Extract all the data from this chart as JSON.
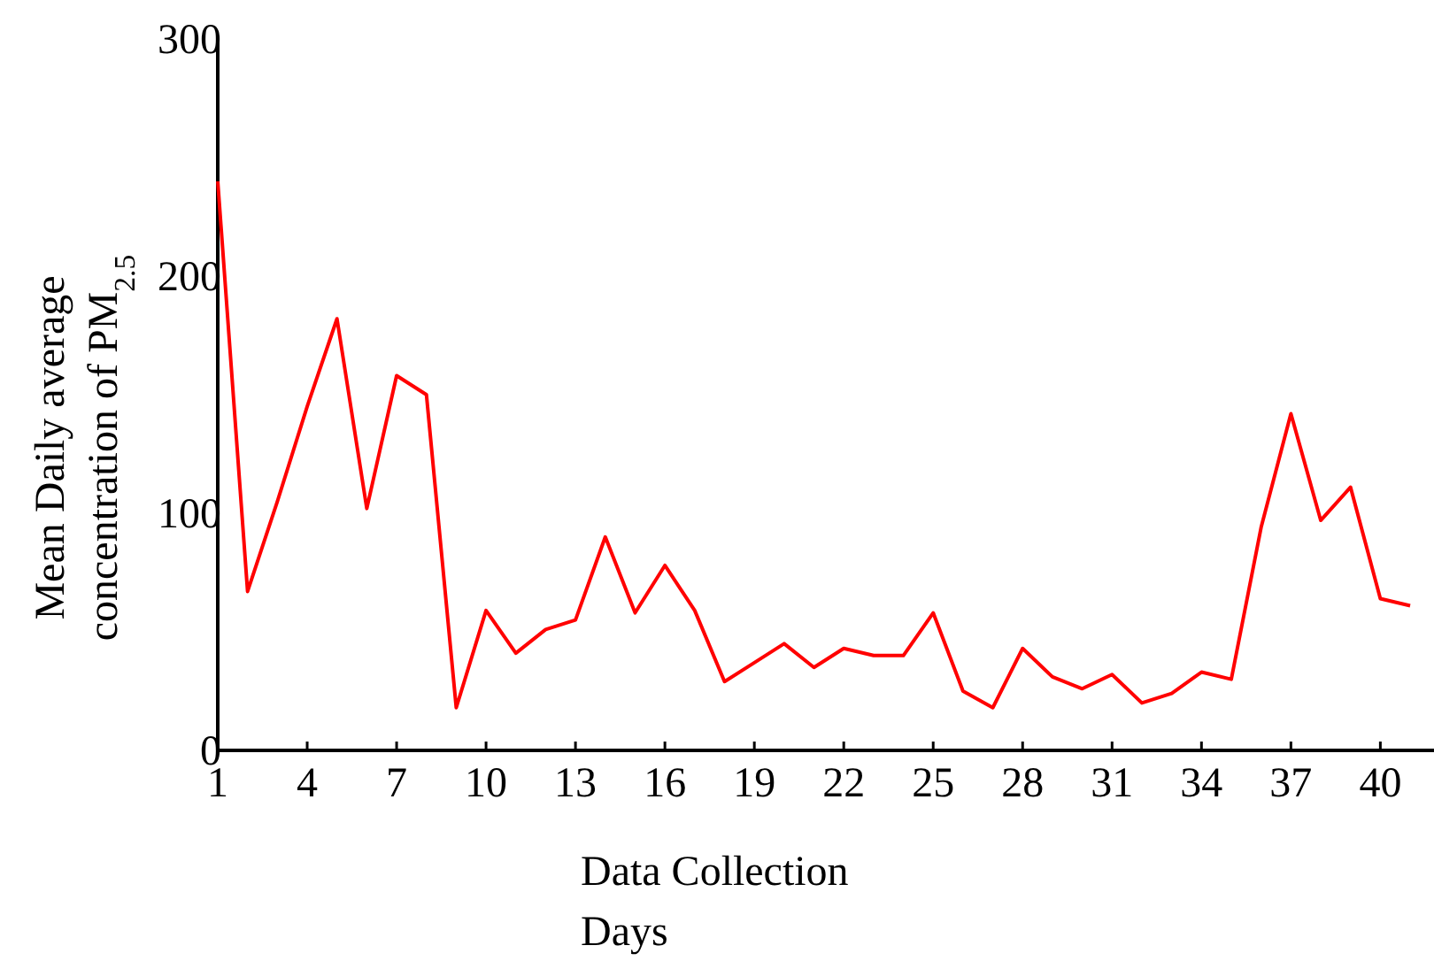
{
  "chart_data": {
    "type": "line",
    "xlabel": "Data Collection Days",
    "ylabel": "Mean Daily average concentration of PM$_{2.5}$",
    "x": [
      1,
      2,
      3,
      4,
      5,
      6,
      7,
      8,
      9,
      10,
      11,
      12,
      13,
      14,
      15,
      16,
      17,
      18,
      19,
      20,
      21,
      22,
      23,
      24,
      25,
      26,
      27,
      28,
      29,
      30,
      31,
      32,
      33,
      34,
      35,
      36,
      37,
      38,
      39,
      40,
      41
    ],
    "series": [
      {
        "color": "#ff0000",
        "values": [
          240,
          67,
          105,
          145,
          182,
          102,
          158,
          150,
          18,
          59,
          41,
          51,
          55,
          90,
          58,
          78,
          59,
          29,
          37,
          45,
          35,
          43,
          40,
          40,
          58,
          25,
          18,
          43,
          31,
          26,
          32,
          20,
          24,
          33,
          30,
          94,
          142,
          97,
          111,
          64,
          61
        ]
      }
    ],
    "xlim": [
      1,
      41.8
    ],
    "xticks": [
      1,
      4,
      7,
      10,
      13,
      16,
      19,
      22,
      25,
      28,
      31,
      34,
      37,
      40
    ],
    "ylim": [
      0,
      300
    ],
    "yticks": [
      0,
      100,
      200,
      300
    ],
    "grid": false,
    "marker": "none",
    "line_style": "solid"
  }
}
